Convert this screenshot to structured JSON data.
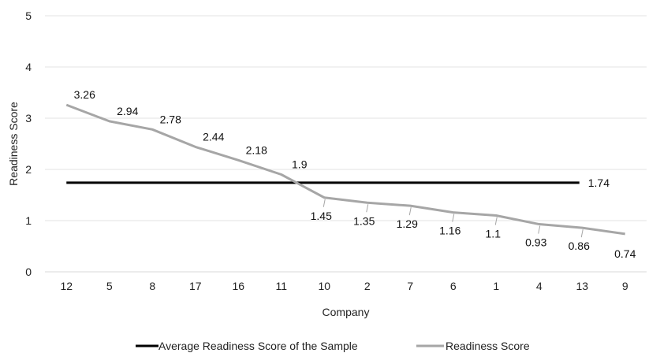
{
  "chart_data": {
    "type": "line",
    "title": "",
    "xlabel": "Company",
    "ylabel": "Readiness Score",
    "ylim": [
      0,
      5
    ],
    "yticks": [
      "0",
      "1",
      "2",
      "3",
      "4",
      "5"
    ],
    "categories": [
      "12",
      "5",
      "8",
      "17",
      "16",
      "11",
      "10",
      "2",
      "7",
      "6",
      "1",
      "4",
      "13",
      "9"
    ],
    "grid": "horizontal",
    "legend_position": "bottom",
    "series": [
      {
        "name": "Average Readiness Score of the Sample",
        "values": [
          1.74,
          1.74,
          1.74,
          1.74,
          1.74,
          1.74,
          1.74,
          1.74,
          1.74,
          1.74,
          1.74,
          1.74,
          1.74,
          1.74
        ],
        "end_label": "1.74",
        "color": "#000000"
      },
      {
        "name": "Readiness Score",
        "values": [
          3.26,
          2.94,
          2.78,
          2.44,
          2.18,
          1.9,
          1.45,
          1.35,
          1.29,
          1.16,
          1.1,
          0.93,
          0.86,
          0.74
        ],
        "labels": [
          "3.26",
          "2.94",
          "2.78",
          "2.44",
          "2.18",
          "1.9",
          "1.45",
          "1.35",
          "1.29",
          "1.16",
          "1.1",
          "0.93",
          "0.86",
          "0.74"
        ],
        "color": "#a6a6a6"
      }
    ]
  }
}
